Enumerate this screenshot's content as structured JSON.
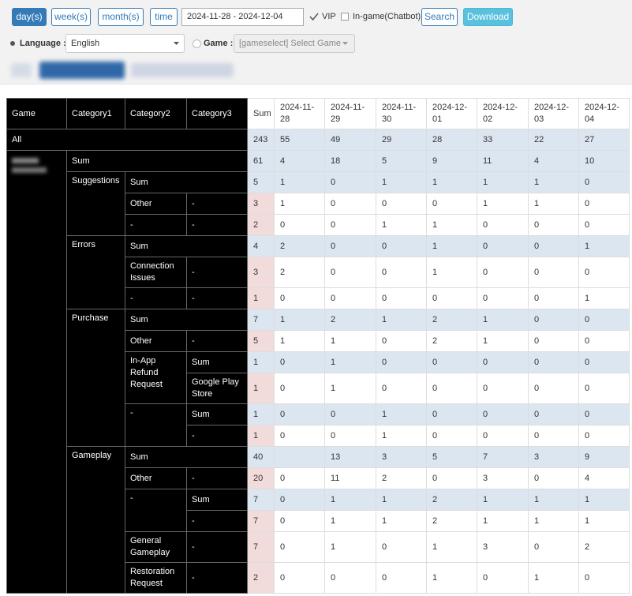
{
  "toolbar": {
    "period_buttons": [
      "day(s)",
      "week(s)",
      "month(s)",
      "time"
    ],
    "date_range": "2024-11-28 - 2024-12-04",
    "vip": "VIP",
    "ingame": "In-game(Chatbot)",
    "search": "Search",
    "download": "Download",
    "language_label": "Language :",
    "language": "English",
    "game_label": "Game :",
    "game": "[gameselect] Select Game"
  },
  "table": {
    "header": [
      "Game",
      "Category1",
      "Category2",
      "Category3",
      "Sum",
      "2024-11-28",
      "2024-11-29",
      "2024-11-30",
      "2024-12-01",
      "2024-12-02",
      "2024-12-03",
      "2024-12-04"
    ],
    "rows": [
      {
        "labels": [
          "All"
        ],
        "sum": 243,
        "values": [
          55,
          49,
          29,
          28,
          33,
          22,
          27
        ]
      },
      {
        "labels": [
          "Sum"
        ],
        "sum": 61,
        "values": [
          4,
          18,
          5,
          9,
          11,
          4,
          10
        ]
      },
      {
        "labels": [
          "Suggestions",
          "Sum"
        ],
        "sum": 5,
        "values": [
          1,
          0,
          1,
          1,
          1,
          1,
          0
        ]
      },
      {
        "labels": [
          "Other",
          "-"
        ],
        "sum": 3,
        "values": [
          1,
          0,
          0,
          0,
          1,
          1,
          0
        ]
      },
      {
        "labels": [
          "-",
          "-"
        ],
        "sum": 2,
        "values": [
          0,
          0,
          1,
          1,
          0,
          0,
          0
        ]
      },
      {
        "labels": [
          "Errors",
          "Sum"
        ],
        "sum": 4,
        "values": [
          2,
          0,
          0,
          1,
          0,
          0,
          1
        ]
      },
      {
        "labels": [
          "Connection Issues",
          "-"
        ],
        "sum": 3,
        "values": [
          2,
          0,
          0,
          1,
          0,
          0,
          0
        ]
      },
      {
        "labels": [
          "-",
          "-"
        ],
        "sum": 1,
        "values": [
          0,
          0,
          0,
          0,
          0,
          0,
          1
        ]
      },
      {
        "labels": [
          "Purchase",
          "Sum"
        ],
        "sum": 7,
        "values": [
          1,
          2,
          1,
          2,
          1,
          0,
          0
        ]
      },
      {
        "labels": [
          "Other",
          "-"
        ],
        "sum": 5,
        "values": [
          1,
          1,
          0,
          2,
          1,
          0,
          0
        ]
      },
      {
        "labels": [
          "In-App Refund Request",
          "Sum"
        ],
        "sum": 1,
        "values": [
          0,
          1,
          0,
          0,
          0,
          0,
          0
        ]
      },
      {
        "labels": [
          "Google Play Store"
        ],
        "sum": 1,
        "values": [
          0,
          1,
          0,
          0,
          0,
          0,
          0
        ]
      },
      {
        "labels": [
          "-",
          "Sum"
        ],
        "sum": 1,
        "values": [
          0,
          0,
          1,
          0,
          0,
          0,
          0
        ]
      },
      {
        "labels": [
          "-"
        ],
        "sum": 1,
        "values": [
          0,
          0,
          1,
          0,
          0,
          0,
          0
        ]
      },
      {
        "labels": [
          "Gameplay",
          "Sum"
        ],
        "sum": 40,
        "values": [
          null,
          13,
          3,
          5,
          7,
          3,
          9
        ]
      },
      {
        "labels": [
          "Other",
          "-"
        ],
        "sum": 20,
        "values": [
          0,
          11,
          2,
          0,
          3,
          0,
          4
        ]
      },
      {
        "labels": [
          "-",
          "Sum"
        ],
        "sum": 7,
        "values": [
          0,
          1,
          1,
          2,
          1,
          1,
          1
        ]
      },
      {
        "labels": [
          "-"
        ],
        "sum": 7,
        "values": [
          0,
          1,
          1,
          2,
          1,
          1,
          1
        ]
      },
      {
        "labels": [
          "General Gameplay",
          "-"
        ],
        "sum": 7,
        "values": [
          0,
          1,
          0,
          1,
          3,
          0,
          2
        ]
      },
      {
        "labels": [
          "Restoration Request",
          "-"
        ],
        "sum": 2,
        "values": [
          0,
          0,
          0,
          1,
          0,
          1,
          0
        ]
      }
    ]
  }
}
